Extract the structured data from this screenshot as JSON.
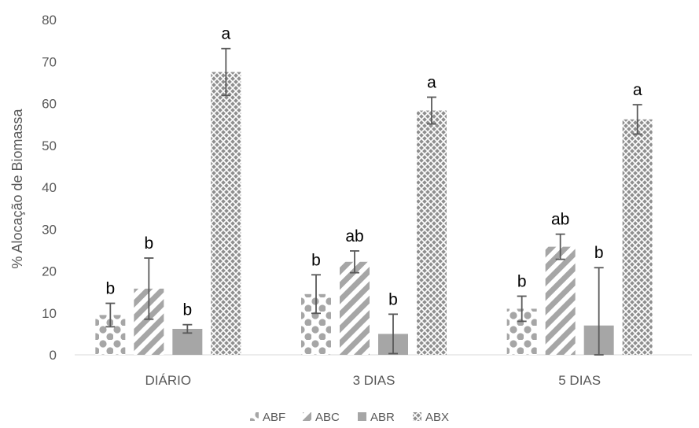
{
  "chart_data": {
    "type": "bar",
    "ylabel": "% Alocação de Biomassa",
    "xlabel": "",
    "ylim": [
      0,
      80
    ],
    "yticks": [
      0,
      10,
      20,
      30,
      40,
      50,
      60,
      70,
      80
    ],
    "grid": false,
    "legend_position": "bottom",
    "categories": [
      "DIÁRIO",
      "3 DIAS",
      "5 DIAS"
    ],
    "series": [
      {
        "name": "ABF",
        "pattern": "dots",
        "color": "#a6a6a6",
        "values": [
          9.5,
          14.5,
          11.0
        ],
        "errors": [
          2.8,
          4.6,
          3.0
        ],
        "labels": [
          "b",
          "b",
          "b"
        ]
      },
      {
        "name": "ABC",
        "pattern": "diagonal-stripes",
        "color": "#a6a6a6",
        "values": [
          15.8,
          22.2,
          25.8
        ],
        "errors": [
          7.3,
          2.6,
          3.0
        ],
        "labels": [
          "b",
          "ab",
          "ab"
        ]
      },
      {
        "name": "ABR",
        "pattern": "solid",
        "color": "#a6a6a6",
        "values": [
          6.2,
          5.0,
          7.0
        ],
        "errors": [
          1.0,
          4.7,
          13.8
        ],
        "labels": [
          "b",
          "b",
          "b"
        ]
      },
      {
        "name": "ABX",
        "pattern": "crosshatch",
        "color": "#a6a6a6",
        "values": [
          67.5,
          58.3,
          56.2
        ],
        "errors": [
          5.6,
          3.2,
          3.5
        ],
        "labels": [
          "a",
          "a",
          "a"
        ]
      }
    ]
  }
}
